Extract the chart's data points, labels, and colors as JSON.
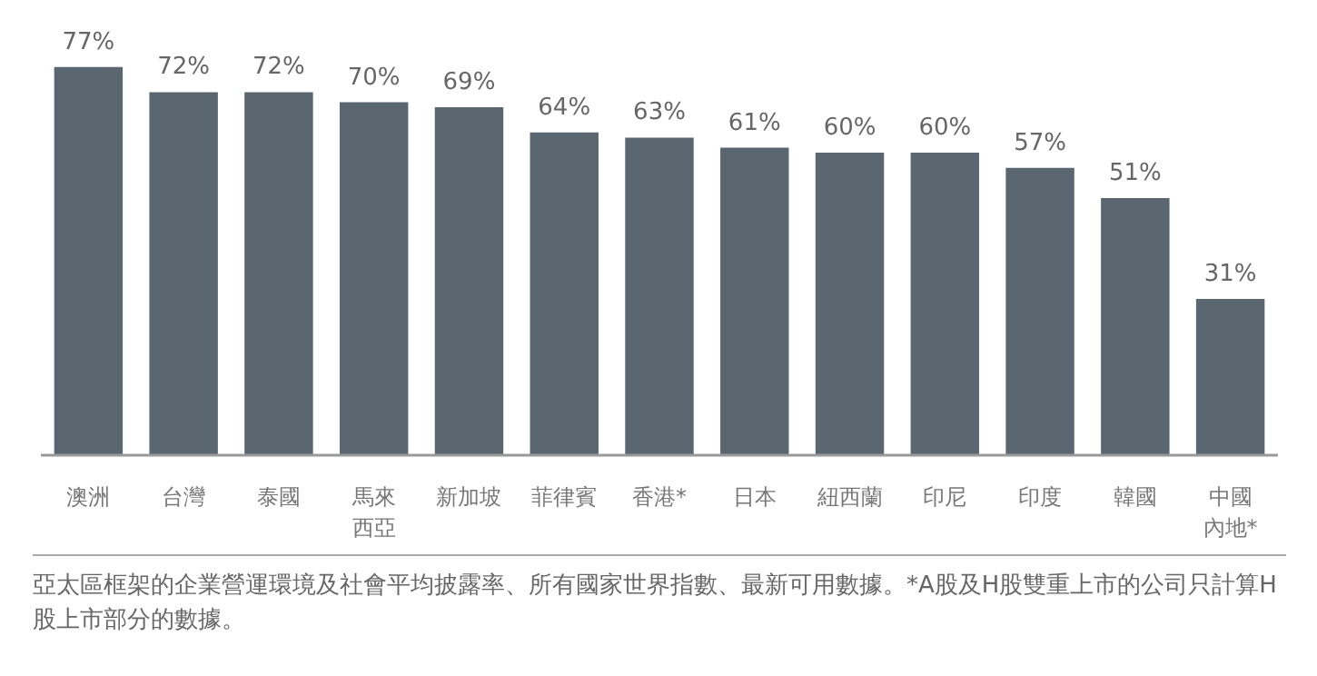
{
  "chart_data": {
    "type": "bar",
    "categories": [
      "澳洲",
      "台灣",
      "泰國",
      "馬來西亞",
      "新加坡",
      "菲律賓",
      "香港*",
      "日本",
      "紐西蘭",
      "印尼",
      "印度",
      "韓國",
      "中國內地*"
    ],
    "values": [
      77,
      72,
      72,
      70,
      69,
      64,
      63,
      61,
      60,
      60,
      57,
      51,
      31
    ],
    "value_labels": [
      "77%",
      "72%",
      "72%",
      "70%",
      "69%",
      "64%",
      "63%",
      "61%",
      "60%",
      "60%",
      "57%",
      "51%",
      "31%"
    ],
    "color": "#5b6770",
    "grid": false,
    "annotations": [
      "亞太區框架的企業營運環境及社會平均披露率、所有國家世界指數、最新可用數據。*A股及H股雙重上市的公司只計算H股上市部分的數據。"
    ]
  }
}
